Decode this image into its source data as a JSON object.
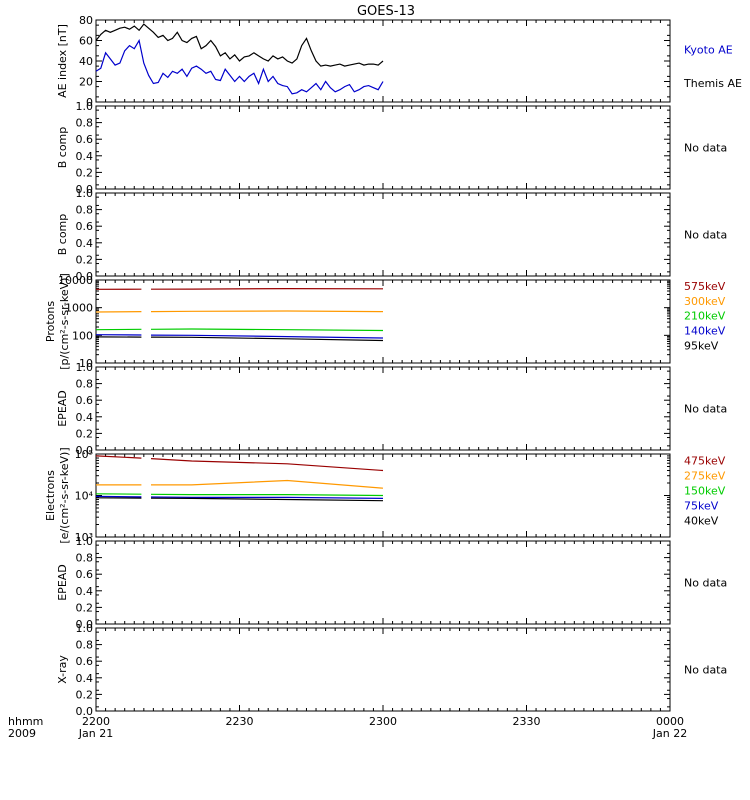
{
  "title": "GOES-13",
  "time_axis": {
    "ticks": [
      "2200",
      "2230",
      "2300",
      "2330",
      "0000"
    ],
    "dates": [
      "Jan 21",
      "",
      "",
      "",
      "Jan 22"
    ],
    "left_label": "hhmm",
    "left_year": "2009"
  },
  "chart_data": [
    {
      "id": "ae",
      "type": "line",
      "ylabel": "AE index [nT]",
      "ylim": [
        0,
        80
      ],
      "yscale": "linear",
      "yticks": [
        "0",
        "20",
        "40",
        "60",
        "80"
      ],
      "x_unit": "minutes after 2200 UT",
      "series": [
        {
          "name": "Kyoto AE",
          "color": "#0000cc",
          "label_y": 36,
          "x": [
            0,
            1,
            2,
            3,
            4,
            5,
            6,
            7,
            8,
            9,
            10,
            11,
            12,
            13,
            14,
            15,
            16,
            17,
            18,
            19,
            20,
            21,
            22,
            23,
            24,
            25,
            26,
            27,
            28,
            29,
            30,
            31,
            32,
            33,
            34,
            35,
            36,
            37,
            38,
            39,
            40,
            41,
            42,
            43,
            44,
            45,
            46,
            47,
            48,
            49,
            50,
            51,
            52,
            53,
            54,
            55,
            56,
            57,
            58,
            59,
            60
          ],
          "values": [
            30,
            33,
            48,
            42,
            36,
            38,
            50,
            55,
            52,
            60,
            38,
            26,
            18,
            19,
            28,
            24,
            30,
            28,
            32,
            25,
            33,
            35,
            32,
            28,
            30,
            22,
            21,
            32,
            26,
            20,
            25,
            20,
            25,
            28,
            18,
            32,
            20,
            25,
            18,
            16,
            15,
            8,
            9,
            12,
            10,
            14,
            18,
            12,
            20,
            14,
            10,
            12,
            15,
            17,
            10,
            12,
            15,
            16,
            14,
            12,
            20
          ]
        },
        {
          "name": "Themis AE",
          "color": "#000000",
          "label_y": 77,
          "x": [
            0,
            1,
            2,
            3,
            4,
            5,
            6,
            7,
            8,
            9,
            10,
            11,
            12,
            13,
            14,
            15,
            16,
            17,
            18,
            19,
            20,
            21,
            22,
            23,
            24,
            25,
            26,
            27,
            28,
            29,
            30,
            31,
            32,
            33,
            34,
            35,
            36,
            37,
            38,
            39,
            40,
            41,
            42,
            43,
            44,
            45,
            46,
            47,
            48,
            49,
            50,
            51,
            52,
            53,
            54,
            55,
            56,
            57,
            58,
            59,
            60
          ],
          "values": [
            60,
            66,
            70,
            68,
            70,
            72,
            73,
            71,
            74,
            70,
            76,
            72,
            68,
            63,
            65,
            60,
            62,
            68,
            60,
            58,
            62,
            64,
            52,
            55,
            60,
            54,
            45,
            48,
            42,
            46,
            40,
            44,
            45,
            48,
            45,
            42,
            40,
            45,
            42,
            44,
            40,
            38,
            42,
            55,
            62,
            50,
            40,
            35,
            36,
            35,
            36,
            37,
            35,
            36,
            37,
            38,
            36,
            37,
            37,
            36,
            40
          ]
        }
      ]
    },
    {
      "id": "bcomp1",
      "type": "line",
      "ylabel": "B comp",
      "ylim": [
        0,
        1.0
      ],
      "yscale": "linear",
      "yticks": [
        "0.0",
        "0.2",
        "0.4",
        "0.6",
        "0.8",
        "1.0"
      ],
      "note": "No data",
      "series": []
    },
    {
      "id": "bcomp2",
      "type": "line",
      "ylabel": "B comp",
      "ylim": [
        0,
        1.0
      ],
      "yscale": "linear",
      "yticks": [
        "0.0",
        "0.2",
        "0.4",
        "0.6",
        "0.8",
        "1.0"
      ],
      "note": "No data",
      "series": []
    },
    {
      "id": "protons",
      "type": "line",
      "ylabel_line1": "Protons",
      "ylabel_line2": "[p/(cm²-s-sr-keV)]",
      "ylim": [
        10,
        10000
      ],
      "yscale": "log",
      "yticks": [
        "10",
        "100",
        "1000",
        "10000"
      ],
      "x_unit": "minutes after 2200 UT",
      "gap_minutes": [
        9.5,
        11.5
      ],
      "series": [
        {
          "name": "575keV",
          "color": "#990000",
          "label_y": 7,
          "x": [
            0,
            20,
            40,
            60
          ],
          "values": [
            4600,
            4700,
            4900,
            4800
          ]
        },
        {
          "name": "300keV",
          "color": "#ff9900",
          "label_y": 25,
          "x": [
            0,
            20,
            40,
            60
          ],
          "values": [
            700,
            740,
            760,
            720
          ]
        },
        {
          "name": "210keV",
          "color": "#00cc00",
          "label_y": 43,
          "x": [
            0,
            20,
            40,
            60
          ],
          "values": [
            160,
            170,
            160,
            150
          ]
        },
        {
          "name": "140keV",
          "color": "#0000cc",
          "label_y": 61,
          "x": [
            0,
            20,
            40,
            60
          ],
          "values": [
            105,
            100,
            90,
            80
          ]
        },
        {
          "name": "95keV",
          "color": "#000000",
          "label_y": 79,
          "x": [
            0,
            20,
            40,
            60
          ],
          "values": [
            88,
            85,
            75,
            65
          ]
        }
      ]
    },
    {
      "id": "epead1",
      "type": "line",
      "ylabel": "EPEAD",
      "ylim": [
        0,
        1.0
      ],
      "yscale": "linear",
      "yticks": [
        "0.0",
        "0.2",
        "0.4",
        "0.6",
        "0.8",
        "1.0"
      ],
      "note": "No data",
      "series": []
    },
    {
      "id": "electrons",
      "type": "line",
      "ylabel_line1": "Electrons",
      "ylabel_line2": "[e/(cm²-s-sr-keV)]",
      "ylim": [
        1000,
        100000
      ],
      "yscale": "log",
      "yticks": [
        "10³",
        "10⁴",
        "10⁵"
      ],
      "x_unit": "minutes after 2200 UT",
      "gap_minutes": [
        9.5,
        11.5
      ],
      "series": [
        {
          "name": "475keV",
          "color": "#990000",
          "label_y": 8,
          "x": [
            0,
            20,
            40,
            60
          ],
          "values": [
            90000,
            68000,
            58000,
            40000
          ]
        },
        {
          "name": "275keV",
          "color": "#ff9900",
          "label_y": 26,
          "x": [
            0,
            20,
            40,
            60
          ],
          "values": [
            18000,
            18000,
            23000,
            15000
          ]
        },
        {
          "name": "150keV",
          "color": "#00cc00",
          "label_y": 44,
          "x": [
            0,
            20,
            40,
            60
          ],
          "values": [
            11000,
            10500,
            10500,
            10000
          ]
        },
        {
          "name": "75keV",
          "color": "#0000cc",
          "label_y": 62,
          "x": [
            0,
            20,
            40,
            60
          ],
          "values": [
            9500,
            9000,
            9000,
            8500
          ]
        },
        {
          "name": "40keV",
          "color": "#000000",
          "label_y": 80,
          "x": [
            0,
            20,
            40,
            60
          ],
          "values": [
            8800,
            8500,
            8000,
            7500
          ]
        }
      ]
    },
    {
      "id": "epead2",
      "type": "line",
      "ylabel": "EPEAD",
      "ylim": [
        0,
        1.0
      ],
      "yscale": "linear",
      "yticks": [
        "0.0",
        "0.2",
        "0.4",
        "0.6",
        "0.8",
        "1.0"
      ],
      "note": "No data",
      "series": []
    },
    {
      "id": "xray",
      "type": "line",
      "ylabel": "X-ray",
      "ylim": [
        0,
        1.0
      ],
      "yscale": "linear",
      "yticks": [
        "0.0",
        "0.2",
        "0.4",
        "0.6",
        "0.8",
        "1.0"
      ],
      "note": "No data",
      "series": []
    }
  ]
}
